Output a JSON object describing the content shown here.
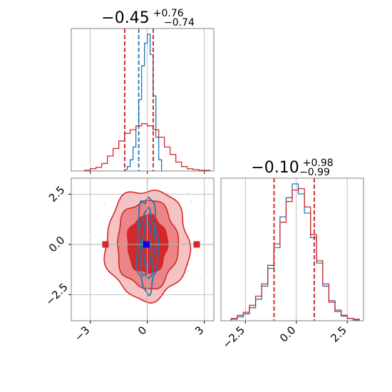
{
  "colors": {
    "red": "#d62728",
    "blue": "#1f77b4",
    "marker_blue": "#0000ff",
    "grid": "#b0b0b0"
  },
  "chart_data": [
    {
      "type": "histogram",
      "panel": "top-left",
      "title": {
        "median": "−0.45",
        "upper": "+0.76",
        "lower": "−0.74"
      },
      "xlim": [
        -4.0,
        3.5
      ],
      "xticks": [
        -3,
        0,
        3
      ],
      "grid": true,
      "series": [
        {
          "color": "#1f77b4",
          "bin_edges": [
            -1.2,
            -1.05,
            -0.9,
            -0.75,
            -0.6,
            -0.45,
            -0.3,
            -0.15,
            0.0,
            0.15,
            0.3,
            0.45,
            0.6,
            0.75
          ],
          "counts": [
            2,
            6,
            15,
            32,
            60,
            95,
            140,
            170,
            182,
            155,
            100,
            45,
            15
          ],
          "quantiles": [
            -1.19,
            -0.45,
            0.31
          ]
        },
        {
          "color": "#d62728",
          "bin_edges": [
            -3.3,
            -3.0,
            -2.7,
            -2.4,
            -2.1,
            -1.8,
            -1.5,
            -1.2,
            -0.9,
            -0.6,
            -0.3,
            0.0,
            0.3,
            0.6,
            0.9,
            1.2,
            1.5,
            1.8,
            2.1,
            2.4,
            2.7,
            3.0,
            3.3
          ],
          "counts": [
            1,
            3,
            5,
            10,
            20,
            30,
            40,
            50,
            55,
            60,
            63,
            60,
            55,
            45,
            32,
            22,
            12,
            6,
            3,
            2,
            1,
            1
          ],
          "quantiles": [
            -1.19,
            0.31
          ]
        }
      ]
    },
    {
      "type": "scatter-contour",
      "panel": "bottom-left",
      "xlim": [
        -4.0,
        3.5
      ],
      "ylim": [
        -3.8,
        3.3
      ],
      "xticks": [
        -3,
        0,
        3
      ],
      "xtick_labels": [
        "−3",
        "0",
        "3"
      ],
      "yticks": [
        -2.5,
        0.0,
        2.5
      ],
      "ytick_labels": [
        "−2.5",
        "0.0",
        "2.5"
      ],
      "grid": true,
      "truth_lines": {
        "x": 0.0,
        "y": 0.0
      },
      "markers": [
        {
          "x": -0.05,
          "y": 0.0,
          "color": "#0000ff"
        },
        {
          "x": -2.2,
          "y": 0.0,
          "color": "#d62728"
        },
        {
          "x": 2.6,
          "y": 0.0,
          "color": "#d62728"
        }
      ],
      "red_contour_radii": [
        {
          "rx": 2.2,
          "ry": 2.75
        },
        {
          "rx": 1.6,
          "ry": 2.2
        },
        {
          "rx": 1.05,
          "ry": 1.45
        }
      ],
      "blue_contour_radii": [
        {
          "rx": 0.55,
          "ry": 2.35
        },
        {
          "rx": 0.4,
          "ry": 1.7
        },
        {
          "rx": 0.22,
          "ry": 1.15
        }
      ]
    },
    {
      "type": "histogram",
      "panel": "bottom-right",
      "title": {
        "median": "−0.10",
        "upper": "+0.98",
        "lower": "−0.99"
      },
      "xlim": [
        -3.7,
        3.3
      ],
      "xticks": [
        -2.5,
        0.0,
        2.5
      ],
      "xtick_labels": [
        "−2.5",
        "0.0",
        "2.5"
      ],
      "grid": true,
      "series": [
        {
          "color": "#1f77b4",
          "bin_edges": [
            -3.2,
            -2.9,
            -2.6,
            -2.3,
            -2.0,
            -1.7,
            -1.4,
            -1.1,
            -0.8,
            -0.5,
            -0.2,
            0.1,
            0.4,
            0.7,
            1.0,
            1.3,
            1.6,
            1.9,
            2.2,
            2.5,
            2.8,
            3.1
          ],
          "counts": [
            2,
            5,
            9,
            17,
            28,
            45,
            68,
            95,
            135,
            160,
            178,
            165,
            140,
            108,
            75,
            45,
            26,
            14,
            6,
            3,
            1
          ],
          "quantiles": [
            -1.09,
            0.88
          ]
        },
        {
          "color": "#d62728",
          "bin_edges": [
            -3.2,
            -2.9,
            -2.6,
            -2.3,
            -2.0,
            -1.7,
            -1.4,
            -1.1,
            -0.8,
            -0.5,
            -0.2,
            0.1,
            0.4,
            0.7,
            1.0,
            1.3,
            1.6,
            1.9,
            2.2,
            2.5,
            2.8,
            3.1
          ],
          "counts": [
            3,
            7,
            11,
            20,
            32,
            48,
            72,
            100,
            128,
            155,
            170,
            172,
            148,
            112,
            78,
            48,
            24,
            12,
            7,
            3,
            2
          ],
          "quantiles": [
            -1.09,
            0.88
          ]
        }
      ]
    }
  ]
}
